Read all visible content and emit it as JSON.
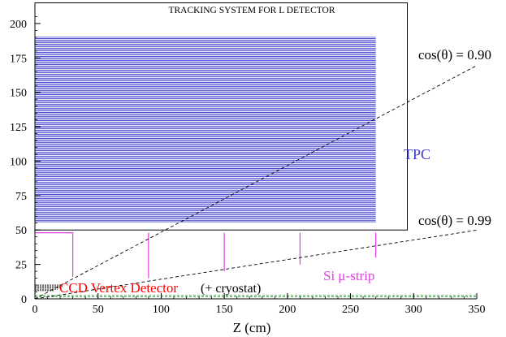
{
  "chart_data": {
    "type": "line",
    "title": "TRACKING SYSTEM FOR L DETECTOR",
    "xlabel": "Z (cm)",
    "ylabel": "",
    "xlim": [
      0,
      350
    ],
    "ylim": [
      0,
      210
    ],
    "x_ticks": [
      0,
      50,
      100,
      150,
      200,
      250,
      300,
      350
    ],
    "y_ticks": [
      0,
      25,
      50,
      75,
      100,
      125,
      150,
      175,
      200
    ],
    "x_tick_labels": [
      "0",
      "50",
      "100",
      "150",
      "200",
      "250",
      "300",
      "350"
    ],
    "y_tick_labels": [
      "0",
      "25",
      "50",
      "75",
      "100",
      "125",
      "150",
      "175",
      "200"
    ],
    "grid": false,
    "colors": {
      "tpc": "#3a3acc",
      "si": "#e040e0",
      "ccd": "#ff0000",
      "axis": "#000000",
      "outline": "#000000",
      "inner": "#4caf50"
    },
    "tpc": {
      "label": "TPC",
      "z_min": 0,
      "z_max": 270,
      "r_min": 56,
      "r_max": 190,
      "layers": 136,
      "outer_box": {
        "z_max": 295,
        "r_min": 50,
        "r_max": 215
      }
    },
    "si_strip": {
      "label": "Si μ-strip",
      "barrel": {
        "z_max": 30,
        "r": 48
      },
      "disks": [
        {
          "z": 30,
          "r_min": 16,
          "r_max": 48
        },
        {
          "z": 90,
          "r_min": 15,
          "r_max": 48
        },
        {
          "z": 150,
          "r_min": 20,
          "r_max": 48
        },
        {
          "z": 210,
          "r_min": 25,
          "r_max": 48
        },
        {
          "z": 270,
          "r_min": 30,
          "r_max": 48
        }
      ]
    },
    "ccd": {
      "label": "CCD Vertex Detector",
      "note": "(+ cryostat)",
      "layers": [
        {
          "z_max": 22,
          "r": 10
        },
        {
          "z_max": 22,
          "r": 9
        },
        {
          "z_max": 20,
          "r": 8
        },
        {
          "z_max": 18,
          "r": 7
        },
        {
          "z_max": 15,
          "r": 6
        }
      ]
    },
    "inner_layers": [
      {
        "z_max": 350,
        "r": 2.5
      },
      {
        "z_max": 350,
        "r": 1.5
      }
    ],
    "series": [
      {
        "name": "cos(θ) = 0.90",
        "x": [
          0,
          350
        ],
        "y": [
          0,
          169.5
        ]
      },
      {
        "name": "cos(θ) = 0.99",
        "x": [
          0,
          350
        ],
        "y": [
          0,
          49.9
        ]
      }
    ]
  }
}
